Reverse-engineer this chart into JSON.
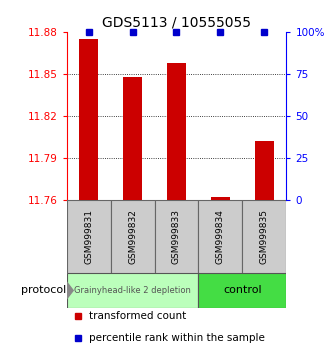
{
  "title": "GDS5113 / 10555055",
  "samples": [
    "GSM999831",
    "GSM999832",
    "GSM999833",
    "GSM999834",
    "GSM999835"
  ],
  "red_values": [
    11.875,
    11.848,
    11.858,
    11.762,
    11.802
  ],
  "blue_values": [
    100,
    100,
    100,
    100,
    100
  ],
  "y_min": 11.76,
  "y_max": 11.88,
  "y_ticks": [
    11.76,
    11.79,
    11.82,
    11.85,
    11.88
  ],
  "y2_ticks": [
    0,
    25,
    50,
    75,
    100
  ],
  "y2_tick_labels": [
    "0",
    "25",
    "50",
    "75",
    "100%"
  ],
  "groups": [
    {
      "label": "Grainyhead-like 2 depletion",
      "samples": [
        0,
        1,
        2
      ],
      "color": "#bbffbb",
      "border": "#555555"
    },
    {
      "label": "control",
      "samples": [
        3,
        4
      ],
      "color": "#44dd44",
      "border": "#555555"
    }
  ],
  "bar_color": "#cc0000",
  "dot_color": "#0000cc",
  "bg_color": "#ffffff",
  "sample_box_color": "#cccccc",
  "protocol_label": "protocol",
  "legend_red": "transformed count",
  "legend_blue": "percentile rank within the sample"
}
